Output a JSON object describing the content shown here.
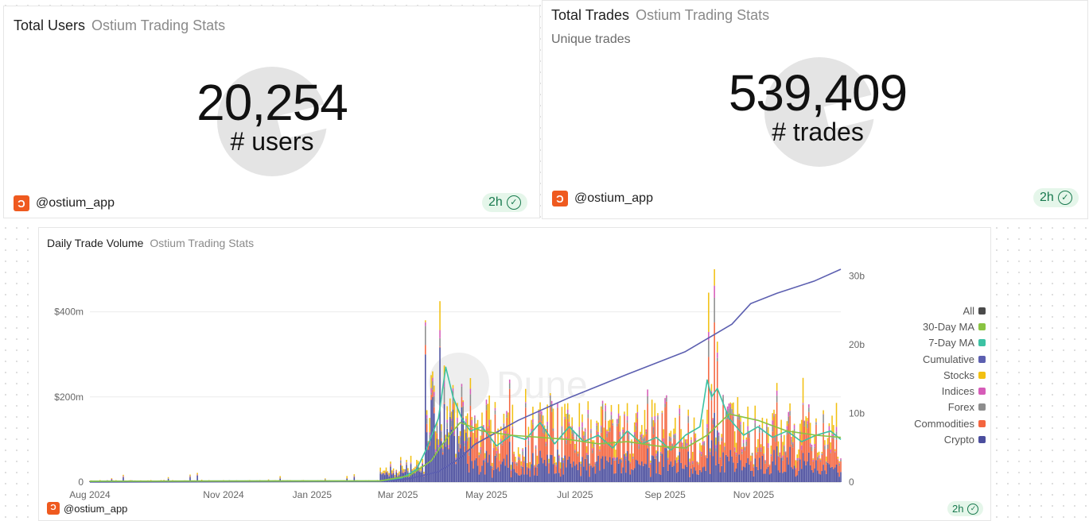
{
  "colors": {
    "crypto": "#4b4e9e",
    "commodities": "#f4653f",
    "forex": "#8d8d8d",
    "indices": "#d65cb8",
    "stocks": "#f2c012",
    "ma7": "#3cc2a3",
    "ma30": "#8ac442",
    "cumulative": "#5c5fb0",
    "all": "#4a4a4a",
    "owner_brand": "#ef5a1f",
    "fresh_badge": "#18794e"
  },
  "cards": {
    "users": {
      "title": "Total Users",
      "source": "Ostium Trading Stats",
      "value": "20,254",
      "label": "# users",
      "owner": "@ostium_app",
      "age": "2h",
      "owner_icon": "ostium-logo-icon",
      "age_icon": "check-circle-icon"
    },
    "trades": {
      "title": "Total Trades",
      "source": "Ostium Trading Stats",
      "subtitle": "Unique trades",
      "value": "539,409",
      "label": "# trades",
      "owner": "@ostium_app",
      "age": "2h",
      "owner_icon": "ostium-logo-icon",
      "age_icon": "check-circle-icon"
    },
    "volume": {
      "title": "Daily Trade Volume",
      "source": "Ostium Trading Stats",
      "owner": "@ostium_app",
      "age": "2h"
    }
  },
  "chart_data": {
    "type": "bar",
    "stacked": true,
    "title": "Daily Trade Volume",
    "x_ticks": [
      "Aug 2024",
      "Nov 2024",
      "Jan 2025",
      "Mar 2025",
      "May 2025",
      "Jul 2025",
      "Sep 2025",
      "Nov 2025"
    ],
    "y_left_ticks": [
      "0",
      "$200m",
      "$400m"
    ],
    "y_left_range": [
      0,
      500
    ],
    "y_right_ticks": [
      "0",
      "10b",
      "20b",
      "30b"
    ],
    "y_right_range": [
      0,
      31
    ],
    "grid": true,
    "legend": [
      "All",
      "30-Day MA",
      "7-Day MA",
      "Cumulative",
      "Stocks",
      "Indices",
      "Forex",
      "Commodities",
      "Crypto"
    ],
    "legend_position": "right",
    "x_unit": "days since Aug 2024 (approx.)",
    "series": [
      {
        "name": "Cumulative",
        "axis": "right",
        "x": [
          0,
          200,
          220,
          240,
          255,
          265,
          295,
          330,
          370,
          410,
          442,
          455,
          473,
          499,
          517
        ],
        "y": [
          0,
          0.1,
          0.5,
          1.5,
          3.5,
          5.5,
          9.0,
          12.3,
          15.7,
          19.0,
          23.0,
          26.0,
          27.5,
          29.3,
          31.0
        ]
      },
      {
        "name": "7-Day MA",
        "axis": "left",
        "x": [
          0,
          200,
          215,
          225,
          232,
          240,
          245,
          250,
          256,
          262,
          270,
          280,
          290,
          300,
          310,
          320,
          330,
          340,
          350,
          360,
          370,
          380,
          390,
          400,
          410,
          420,
          425,
          428,
          432,
          440,
          450,
          460,
          470,
          480,
          490,
          500,
          510,
          517
        ],
        "y": [
          2,
          3,
          10,
          30,
          80,
          150,
          270,
          200,
          150,
          120,
          130,
          85,
          110,
          100,
          140,
          90,
          130,
          95,
          110,
          80,
          120,
          90,
          105,
          75,
          110,
          130,
          240,
          200,
          220,
          150,
          110,
          130,
          105,
          120,
          95,
          110,
          120,
          100
        ]
      },
      {
        "name": "30-Day MA",
        "axis": "left",
        "x": [
          0,
          200,
          220,
          235,
          245,
          255,
          270,
          290,
          310,
          330,
          350,
          370,
          390,
          410,
          425,
          440,
          460,
          480,
          500,
          517
        ],
        "y": [
          2,
          3,
          15,
          50,
          100,
          140,
          120,
          110,
          105,
          100,
          90,
          95,
          85,
          80,
          110,
          160,
          145,
          120,
          110,
          105
        ]
      }
    ],
    "bars_shape": {
      "note": "Daily stacked bars (Crypto, Commodities, Forex, Indices, Stocks) rising from ~Mar 2025; peaks near $420m (Apr 2025) and $500m (Oct 2025).",
      "peaks": [
        {
          "x": 241,
          "value": 425
        },
        {
          "x": 430,
          "value": 500
        }
      ]
    }
  }
}
